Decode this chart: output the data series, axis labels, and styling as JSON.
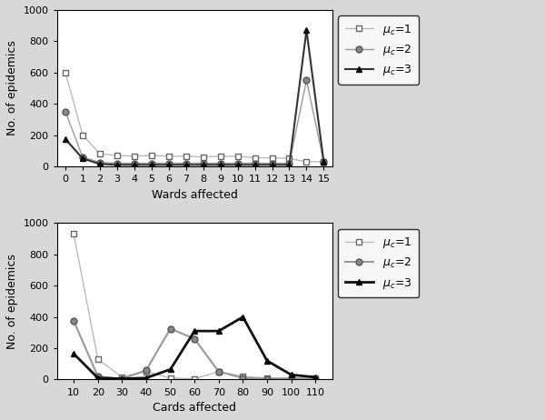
{
  "top": {
    "xlabel": "Wards affected",
    "ylabel": "No. of epidemics",
    "ylim": [
      0,
      1000
    ],
    "yticks": [
      0,
      200,
      400,
      600,
      800,
      1000
    ],
    "xticks": [
      0,
      1,
      2,
      3,
      4,
      5,
      6,
      7,
      8,
      9,
      10,
      11,
      12,
      13,
      14,
      15
    ],
    "xlim": [
      -0.5,
      15.5
    ],
    "series": [
      {
        "label": "$\\mu_c$=1",
        "marker": "s",
        "line_color": "#bbbbbb",
        "mfc": "white",
        "mec": "#666666",
        "lw": 1.0,
        "ms": 5,
        "x": [
          0,
          1,
          2,
          3,
          4,
          5,
          6,
          7,
          8,
          9,
          10,
          11,
          12,
          13,
          14,
          15
        ],
        "y": [
          600,
          200,
          80,
          70,
          65,
          70,
          65,
          65,
          60,
          65,
          65,
          55,
          55,
          50,
          30,
          30
        ]
      },
      {
        "label": "$\\mu_c$=2",
        "marker": "o",
        "line_color": "#999999",
        "mfc": "#888888",
        "mec": "#555555",
        "lw": 1.0,
        "ms": 5,
        "x": [
          0,
          1,
          2,
          3,
          4,
          5,
          6,
          7,
          8,
          9,
          10,
          11,
          12,
          13,
          14,
          15
        ],
        "y": [
          350,
          60,
          25,
          20,
          20,
          20,
          20,
          20,
          20,
          20,
          20,
          20,
          20,
          20,
          550,
          30
        ]
      },
      {
        "label": "$\\mu_c$=3",
        "marker": "^",
        "line_color": "#333333",
        "mfc": "#111111",
        "mec": "#000000",
        "lw": 1.5,
        "ms": 5,
        "x": [
          0,
          1,
          2,
          3,
          4,
          5,
          6,
          7,
          8,
          9,
          10,
          11,
          12,
          13,
          14,
          15
        ],
        "y": [
          175,
          50,
          15,
          10,
          10,
          10,
          10,
          10,
          10,
          10,
          10,
          10,
          10,
          10,
          870,
          30
        ]
      }
    ]
  },
  "bottom": {
    "xlabel": "Cards affected",
    "ylabel": "No. of epidemics",
    "ylim": [
      0,
      1000
    ],
    "yticks": [
      0,
      200,
      400,
      600,
      800,
      1000
    ],
    "xticks": [
      10,
      20,
      30,
      40,
      50,
      60,
      70,
      80,
      90,
      100,
      110
    ],
    "xlim": [
      3,
      117
    ],
    "series": [
      {
        "label": "$\\mu_c$=1",
        "marker": "s",
        "line_color": "#bbbbbb",
        "mfc": "white",
        "mec": "#666666",
        "lw": 1.0,
        "ms": 5,
        "x": [
          10,
          20,
          30,
          40,
          50,
          60,
          70,
          80,
          90,
          100,
          110
        ],
        "y": [
          930,
          130,
          15,
          50,
          10,
          5,
          50,
          20,
          10,
          10,
          10
        ]
      },
      {
        "label": "$\\mu_c$=2",
        "marker": "o",
        "line_color": "#999999",
        "mfc": "#888888",
        "mec": "#555555",
        "lw": 1.5,
        "ms": 5,
        "x": [
          10,
          20,
          30,
          40,
          50,
          60,
          70,
          80,
          90,
          100,
          110
        ],
        "y": [
          375,
          20,
          5,
          60,
          325,
          260,
          50,
          10,
          5,
          5,
          5
        ]
      },
      {
        "label": "$\\mu_c$=3",
        "marker": "^",
        "line_color": "#111111",
        "mfc": "#000000",
        "mec": "#000000",
        "lw": 2.0,
        "ms": 5,
        "x": [
          10,
          20,
          30,
          40,
          50,
          60,
          70,
          80,
          90,
          100,
          110
        ],
        "y": [
          165,
          10,
          5,
          10,
          65,
          310,
          310,
          400,
          120,
          30,
          15
        ]
      }
    ]
  },
  "fig_bg": "#d8d8d8",
  "plot_bg": "#ffffff"
}
